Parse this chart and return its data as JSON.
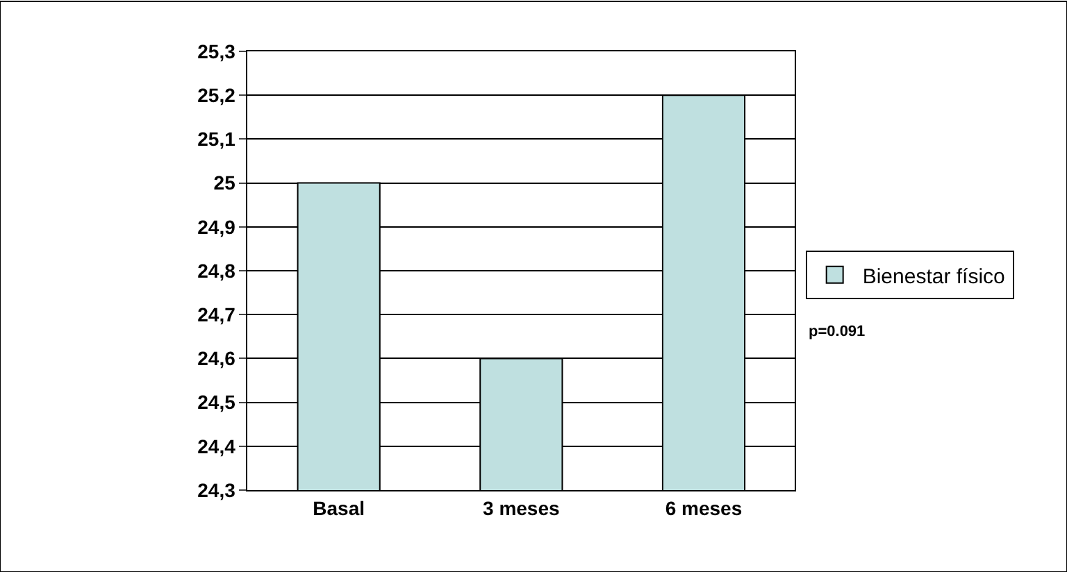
{
  "chart_data": {
    "type": "bar",
    "categories": [
      "Basal",
      "3 meses",
      "6 meses"
    ],
    "series": [
      {
        "name": "Bienestar físico",
        "color": "#bfe0e0",
        "values": [
          25.0,
          24.6,
          25.2
        ]
      }
    ],
    "ylim": [
      24.3,
      25.3
    ],
    "yticks": [
      {
        "value": 24.3,
        "label": "24,3"
      },
      {
        "value": 24.4,
        "label": "24,4"
      },
      {
        "value": 24.5,
        "label": "24,5"
      },
      {
        "value": 24.6,
        "label": "24,6"
      },
      {
        "value": 24.7,
        "label": "24,7"
      },
      {
        "value": 24.8,
        "label": "24,8"
      },
      {
        "value": 24.9,
        "label": "24,9"
      },
      25,
      {
        "value": 25.1,
        "label": "25,1"
      },
      {
        "value": 25.2,
        "label": "25,2"
      },
      {
        "value": 25.3,
        "label": "25,3"
      }
    ],
    "grid": "y",
    "legend": "right",
    "annotations": [
      "p=0.091"
    ]
  }
}
